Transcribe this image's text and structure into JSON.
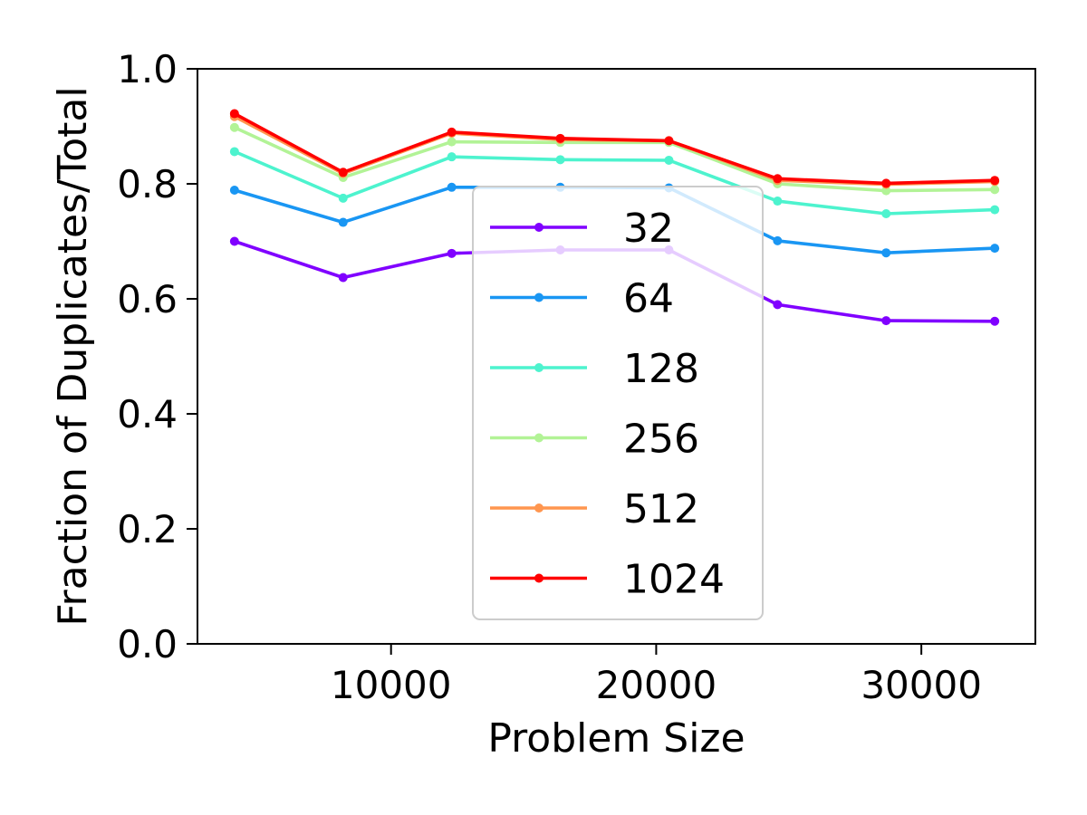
{
  "chart_data": {
    "type": "line",
    "title": "",
    "xlabel": "Problem Size",
    "ylabel": "Fraction of Duplicates/Total",
    "xlim": [
      2700,
      34300
    ],
    "ylim": [
      0.0,
      1.0
    ],
    "xticks": [
      10000,
      20000,
      30000
    ],
    "xtick_labels": [
      "10000",
      "20000",
      "30000"
    ],
    "yticks": [
      0.0,
      0.2,
      0.4,
      0.6,
      0.8,
      1.0
    ],
    "ytick_labels": [
      "0.0",
      "0.2",
      "0.4",
      "0.6",
      "0.8",
      "1.0"
    ],
    "grid": false,
    "legend_position": "center",
    "x": [
      4096,
      8192,
      12288,
      16384,
      20480,
      24576,
      28672,
      32768
    ],
    "series": [
      {
        "name": "32",
        "color": "#8000ff",
        "values": [
          0.7,
          0.637,
          0.679,
          0.685,
          0.685,
          0.59,
          0.562,
          0.561
        ]
      },
      {
        "name": "64",
        "color": "#1996f3",
        "values": [
          0.789,
          0.733,
          0.794,
          0.794,
          0.793,
          0.701,
          0.68,
          0.688
        ]
      },
      {
        "name": "128",
        "color": "#4df3ce",
        "values": [
          0.856,
          0.775,
          0.847,
          0.842,
          0.841,
          0.77,
          0.748,
          0.755
        ]
      },
      {
        "name": "256",
        "color": "#b2f396",
        "values": [
          0.898,
          0.811,
          0.873,
          0.872,
          0.872,
          0.8,
          0.788,
          0.79
        ]
      },
      {
        "name": "512",
        "color": "#ff964f",
        "values": [
          0.917,
          0.818,
          0.888,
          0.877,
          0.875,
          0.806,
          0.799,
          0.804
        ]
      },
      {
        "name": "1024",
        "color": "#ff0000",
        "values": [
          0.922,
          0.82,
          0.89,
          0.879,
          0.875,
          0.809,
          0.801,
          0.806
        ]
      }
    ]
  }
}
